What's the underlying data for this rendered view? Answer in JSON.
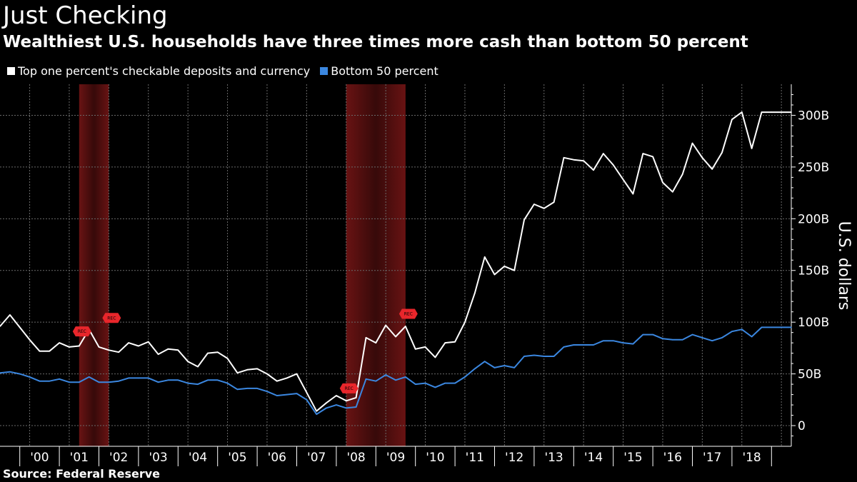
{
  "header": {
    "title": "Just Checking",
    "subtitle": "Wealthiest U.S. households have three times more cash than bottom 50 percent"
  },
  "footer": {
    "source": "Source: Federal Reserve"
  },
  "colors": {
    "background": "#000000",
    "top_series": "#ffffff",
    "bottom_series": "#3b87e0",
    "recession_marker": "#e8262b",
    "recession_band": "#6e1414",
    "grid": "#6a6a6a"
  },
  "chart_data": {
    "type": "line",
    "title": "Just Checking",
    "subtitle": "Wealthiest U.S. households have three times more cash than bottom 50 percent",
    "xlabel": "",
    "ylabel": "U.S. dollars",
    "ylim": [
      -20,
      330
    ],
    "y_ticks": [
      0,
      50,
      100,
      150,
      200,
      250,
      300
    ],
    "y_tick_labels": [
      "0",
      "50B",
      "100B",
      "150B",
      "200B",
      "250B",
      "300B"
    ],
    "y_axis_side": "right",
    "x_range": [
      1999.25,
      2019.25
    ],
    "x_tick_labels": [
      "'00",
      "'01",
      "'02",
      "'03",
      "'04",
      "'05",
      "'06",
      "'07",
      "'08",
      "'09",
      "'10",
      "'11",
      "'12",
      "'13",
      "'14",
      "'15",
      "'16",
      "'17",
      "'18"
    ],
    "grid": true,
    "legend_position": "top-left",
    "recessions": [
      {
        "start": 2001.25,
        "end": 2002.0,
        "label": "REC"
      },
      {
        "start": 2008.0,
        "end": 2009.5,
        "label": "REC"
      }
    ],
    "recession_markers": [
      {
        "x": 2001.25,
        "y": 80,
        "label": "REC"
      },
      {
        "x": 2002.0,
        "y": 93,
        "label": "REC"
      },
      {
        "x": 2008.0,
        "y": 25,
        "label": "REC"
      },
      {
        "x": 2009.5,
        "y": 97,
        "label": "REC"
      }
    ],
    "x": [
      1999.25,
      1999.5,
      1999.75,
      2000.0,
      2000.25,
      2000.5,
      2000.75,
      2001.0,
      2001.25,
      2001.5,
      2001.75,
      2002.0,
      2002.25,
      2002.5,
      2002.75,
      2003.0,
      2003.25,
      2003.5,
      2003.75,
      2004.0,
      2004.25,
      2004.5,
      2004.75,
      2005.0,
      2005.25,
      2005.5,
      2005.75,
      2006.0,
      2006.25,
      2006.5,
      2006.75,
      2007.0,
      2007.25,
      2007.5,
      2007.75,
      2008.0,
      2008.25,
      2008.5,
      2008.75,
      2009.0,
      2009.25,
      2009.5,
      2009.75,
      2010.0,
      2010.25,
      2010.5,
      2010.75,
      2011.0,
      2011.25,
      2011.5,
      2011.75,
      2012.0,
      2012.25,
      2012.5,
      2012.75,
      2013.0,
      2013.25,
      2013.5,
      2013.75,
      2014.0,
      2014.25,
      2014.5,
      2014.75,
      2015.0,
      2015.25,
      2015.5,
      2015.75,
      2016.0,
      2016.25,
      2016.5,
      2016.75,
      2017.0,
      2017.25,
      2017.5,
      2017.75,
      2018.0,
      2018.25,
      2018.5,
      2018.75,
      2019.0,
      2019.25
    ],
    "series": [
      {
        "name": "Top one percent's checkable deposits and currency",
        "values": [
          96,
          107,
          95,
          83,
          72,
          72,
          80,
          76,
          77,
          93,
          76,
          73,
          71,
          80,
          77,
          81,
          69,
          74,
          73,
          62,
          57,
          70,
          71,
          65,
          51,
          54,
          55,
          50,
          43,
          46,
          50,
          32,
          14,
          22,
          29,
          24,
          27,
          85,
          80,
          97,
          86,
          96,
          74,
          76,
          66,
          80,
          81,
          100,
          128,
          163,
          146,
          154,
          150,
          199,
          214,
          210,
          216,
          259,
          257,
          256,
          247,
          263,
          252,
          238,
          224,
          263,
          260,
          235,
          226,
          243,
          273,
          259,
          248,
          264,
          296,
          303,
          268,
          303,
          303,
          303,
          303
        ]
      },
      {
        "name": "Bottom 50 percent",
        "values": [
          51,
          52,
          50,
          47,
          43,
          43,
          45,
          42,
          42,
          47,
          42,
          42,
          43,
          46,
          46,
          46,
          42,
          44,
          44,
          41,
          40,
          44,
          44,
          41,
          35,
          36,
          36,
          33,
          29,
          30,
          31,
          25,
          11,
          17,
          20,
          17,
          18,
          45,
          43,
          49,
          44,
          47,
          40,
          41,
          37,
          41,
          41,
          47,
          55,
          62,
          56,
          58,
          56,
          67,
          68,
          67,
          67,
          76,
          78,
          78,
          78,
          82,
          82,
          80,
          79,
          88,
          88,
          84,
          83,
          83,
          88,
          85,
          82,
          85,
          91,
          93,
          86,
          95,
          95,
          95,
          95
        ]
      }
    ]
  }
}
